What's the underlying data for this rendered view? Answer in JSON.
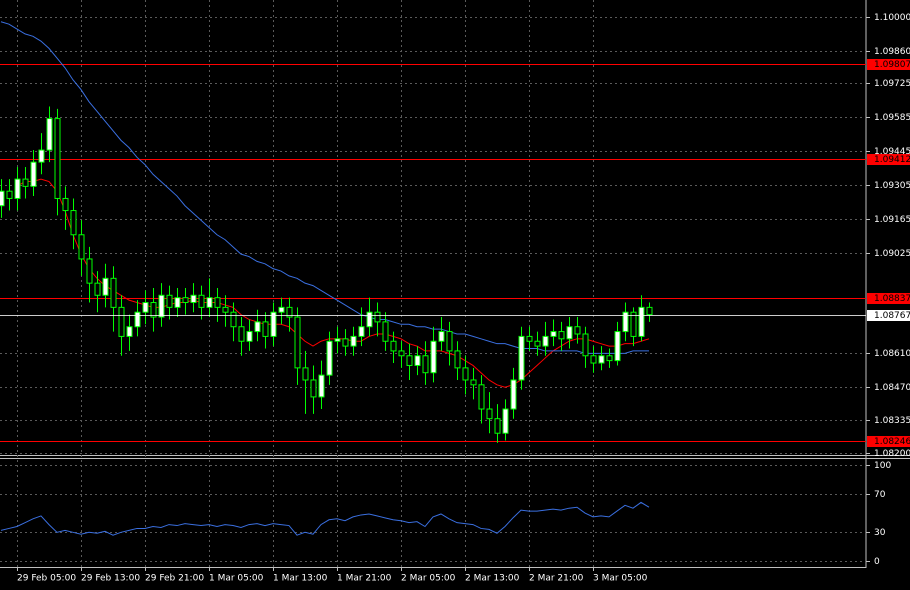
{
  "chart_data": [
    {
      "type": "candlestick",
      "categories": [
        null,
        null,
        "29 Feb 05:00",
        null,
        null,
        null,
        null,
        null,
        null,
        null,
        "29 Feb 13:00",
        null,
        null,
        null,
        null,
        null,
        null,
        null,
        "29 Feb 21:00",
        null,
        null,
        null,
        null,
        null,
        null,
        null,
        "1 Mar 05:00",
        null,
        null,
        null,
        null,
        null,
        null,
        null,
        "1 Mar 13:00",
        null,
        null,
        null,
        null,
        null,
        null,
        null,
        "1 Mar 21:00",
        null,
        null,
        null,
        null,
        null,
        null,
        null,
        "2 Mar 05:00",
        null,
        null,
        null,
        null,
        null,
        null,
        null,
        "2 Mar 13:00",
        null,
        null,
        null,
        null,
        null,
        null,
        null,
        "2 Mar 21:00",
        null,
        null,
        null,
        null,
        null,
        null,
        null,
        "3 Mar 05:00",
        null,
        null,
        null,
        null,
        null,
        null,
        null
      ],
      "open": [
        1.0922,
        1.0928,
        1.0925,
        1.0933,
        1.093,
        1.094,
        1.0945,
        1.0958,
        1.0925,
        1.092,
        1.091,
        1.09,
        1.089,
        1.0885,
        1.0892,
        1.088,
        1.0868,
        1.0872,
        1.0878,
        1.0882,
        1.0876,
        1.0885,
        1.088,
        1.0884,
        1.0882,
        1.0885,
        1.088,
        1.0884,
        1.088,
        1.0878,
        1.0872,
        1.0866,
        1.087,
        1.0874,
        1.0868,
        1.0878,
        1.088,
        1.0876,
        1.0855,
        1.085,
        1.0843,
        1.0852,
        1.0866,
        1.0867,
        1.0864,
        1.0868,
        1.0872,
        1.0878,
        1.0874,
        1.0866,
        1.0862,
        1.086,
        1.0856,
        1.086,
        1.0853,
        1.0866,
        1.087,
        1.0862,
        1.0855,
        1.085,
        1.0848,
        1.0838,
        1.0834,
        1.0828,
        1.0838,
        1.085,
        1.0868,
        1.0866,
        1.0864,
        1.0868,
        1.087,
        1.0867,
        1.0872,
        1.0869,
        1.086,
        1.0857,
        1.086,
        1.0858,
        1.087,
        1.0878,
        1.0868,
        1.088
      ],
      "high": [
        1.0933,
        1.0933,
        1.0938,
        1.0938,
        1.0945,
        1.0952,
        1.0963,
        1.0962,
        1.093,
        1.0925,
        1.0916,
        1.0905,
        1.0895,
        1.0898,
        1.0897,
        1.0885,
        1.0877,
        1.0883,
        1.0887,
        1.0888,
        1.089,
        1.0889,
        1.0888,
        1.0888,
        1.089,
        1.0889,
        1.0892,
        1.0888,
        1.0885,
        1.0882,
        1.0876,
        1.0875,
        1.0879,
        1.0878,
        1.0882,
        1.0884,
        1.0884,
        1.088,
        1.0862,
        1.0856,
        1.0858,
        1.087,
        1.0872,
        1.0871,
        1.0872,
        1.088,
        1.0884,
        1.0882,
        1.0878,
        1.087,
        1.0866,
        1.0865,
        1.0864,
        1.0866,
        1.0872,
        1.0876,
        1.0874,
        1.0866,
        1.086,
        1.0855,
        1.0852,
        1.0845,
        1.084,
        1.0842,
        1.0855,
        1.0872,
        1.0872,
        1.087,
        1.0874,
        1.0875,
        1.0874,
        1.0876,
        1.0876,
        1.0872,
        1.0864,
        1.0864,
        1.0863,
        1.0874,
        1.0882,
        1.088,
        1.0885,
        1.0882
      ],
      "low": [
        1.0917,
        1.092,
        1.092,
        1.0925,
        1.0926,
        1.0935,
        1.094,
        1.0918,
        1.0912,
        1.0904,
        1.0893,
        1.0882,
        1.0878,
        1.088,
        1.087,
        1.086,
        1.0862,
        1.0868,
        1.0873,
        1.087,
        1.0872,
        1.0875,
        1.0876,
        1.0877,
        1.0878,
        1.0875,
        1.0876,
        1.0874,
        1.0872,
        1.0866,
        1.086,
        1.0862,
        1.0866,
        1.0863,
        1.0864,
        1.0873,
        1.087,
        1.0848,
        1.0836,
        1.0836,
        1.0838,
        1.0848,
        1.0861,
        1.086,
        1.086,
        1.0864,
        1.0868,
        1.0868,
        1.0862,
        1.0857,
        1.0855,
        1.085,
        1.0852,
        1.0848,
        1.0849,
        1.0862,
        1.0856,
        1.085,
        1.0844,
        1.0842,
        1.0832,
        1.0828,
        1.0824,
        1.0825,
        1.0834,
        1.0846,
        1.0862,
        1.086,
        1.086,
        1.0864,
        1.0862,
        1.0863,
        1.0865,
        1.0855,
        1.0853,
        1.0854,
        1.0855,
        1.0856,
        1.0866,
        1.0864,
        1.0866,
        1.0874
      ],
      "close": [
        1.0928,
        1.0925,
        1.0933,
        1.093,
        1.094,
        1.0945,
        1.0958,
        1.0925,
        1.092,
        1.091,
        1.09,
        1.089,
        1.0885,
        1.0892,
        1.088,
        1.0868,
        1.0872,
        1.0878,
        1.0882,
        1.0876,
        1.0885,
        1.088,
        1.0884,
        1.0882,
        1.0885,
        1.088,
        1.0884,
        1.088,
        1.0878,
        1.0872,
        1.0866,
        1.087,
        1.0874,
        1.0868,
        1.0878,
        1.088,
        1.0876,
        1.0855,
        1.085,
        1.0843,
        1.0852,
        1.0866,
        1.0867,
        1.0864,
        1.0868,
        1.0872,
        1.0878,
        1.0874,
        1.0866,
        1.0862,
        1.086,
        1.0856,
        1.086,
        1.0853,
        1.0866,
        1.087,
        1.0862,
        1.0855,
        1.085,
        1.0848,
        1.0838,
        1.0834,
        1.0828,
        1.0838,
        1.085,
        1.0868,
        1.0866,
        1.0864,
        1.0868,
        1.087,
        1.0867,
        1.0872,
        1.0869,
        1.086,
        1.0857,
        1.086,
        1.0858,
        1.087,
        1.0878,
        1.0868,
        1.088,
        1.0877
      ],
      "up_color": "#ffffff",
      "down_color": "#000000",
      "wick_color": "#00ff00",
      "lines": [
        {
          "color": "#ff0000",
          "values": [
            null,
            null,
            1.093,
            1.0932,
            1.0932,
            1.0933,
            1.0932,
            1.0928,
            1.092,
            1.091,
            1.0902,
            1.0896,
            1.0892,
            1.0889,
            1.0887,
            1.0885,
            1.0883,
            1.0882,
            1.0881,
            1.088,
            1.088,
            1.0881,
            1.0882,
            1.0882,
            1.0883,
            1.0882,
            1.0882,
            1.0882,
            1.0881,
            1.088,
            1.0877,
            1.0875,
            1.0874,
            1.0873,
            1.0873,
            1.0873,
            1.0872,
            1.0869,
            1.0866,
            1.0864,
            1.0866,
            1.0867,
            1.0867,
            1.0867,
            1.0866,
            1.0866,
            1.0868,
            1.0869,
            1.0869,
            1.0868,
            1.0867,
            1.0865,
            1.0864,
            1.0862,
            1.0862,
            1.0862,
            1.0861,
            1.086,
            1.0858,
            1.0856,
            1.0853,
            1.085,
            1.0848,
            1.0847,
            1.0848,
            1.085,
            1.0853,
            1.0856,
            1.0859,
            1.0862,
            1.0864,
            1.0866,
            1.0867,
            1.0867,
            1.0866,
            1.0865,
            1.0864,
            1.0864,
            1.0865,
            1.0865,
            1.0866,
            1.0867
          ]
        },
        {
          "color": "#3a6fe0",
          "values": [
            1.0998,
            1.0997,
            1.0995,
            1.0993,
            1.0992,
            1.099,
            1.0987,
            1.0983,
            1.0979,
            1.0974,
            1.097,
            1.0965,
            1.0961,
            1.0957,
            1.0953,
            1.0949,
            1.0946,
            1.0942,
            1.0939,
            1.0935,
            1.0932,
            1.0929,
            1.0926,
            1.0922,
            1.0919,
            1.0916,
            1.0913,
            1.091,
            1.0908,
            1.0905,
            1.0902,
            1.0901,
            1.0899,
            1.0898,
            1.0896,
            1.0895,
            1.0893,
            1.0892,
            1.089,
            1.0889,
            1.0887,
            1.0885,
            1.0883,
            1.0881,
            1.0879,
            1.0877,
            1.0876,
            1.0875,
            1.0875,
            1.0874,
            1.0873,
            1.0873,
            1.0872,
            1.0872,
            1.0871,
            1.0871,
            1.087,
            1.0869,
            1.0869,
            1.0868,
            1.0867,
            1.0866,
            1.0865,
            1.0865,
            1.0864,
            1.0863,
            1.0863,
            1.0863,
            1.0862,
            1.0862,
            1.0862,
            1.0862,
            1.0862,
            1.0861,
            1.0861,
            1.0861,
            1.0861,
            1.0861,
            1.0861,
            1.0862,
            1.0862,
            1.0862
          ]
        }
      ],
      "levels": [
        {
          "value": 1.09807,
          "color": "#ff0000"
        },
        {
          "value": 1.09412,
          "color": "#ff0000"
        },
        {
          "value": 1.08837,
          "color": "#ff0000"
        },
        {
          "value": 1.08246,
          "color": "#ff0000"
        }
      ],
      "current": {
        "value": 1.08767,
        "color": "#ffffff"
      },
      "ylim": [
        1.0819,
        1.1007
      ],
      "yticks": [
        {
          "value": 1.1,
          "label": "1.10000"
        },
        {
          "value": 1.0986,
          "label": "1.09860"
        },
        {
          "value": 1.09725,
          "label": "1.09725"
        },
        {
          "value": 1.09585,
          "label": "1.09585"
        },
        {
          "value": 1.09445,
          "label": "1.09445"
        },
        {
          "value": 1.09305,
          "label": "1.09305"
        },
        {
          "value": 1.09165,
          "label": "1.09165"
        },
        {
          "value": 1.09025,
          "label": "1.09025"
        },
        {
          "value": 1.0861,
          "label": "1.08610"
        },
        {
          "value": 1.0847,
          "label": "1.08470"
        },
        {
          "value": 1.08335,
          "label": "1.08335"
        },
        {
          "value": 1.082,
          "label": "1.08200"
        }
      ],
      "grid": true
    },
    {
      "type": "line",
      "color": "#3a6fe0",
      "values": [
        32,
        34,
        36,
        40,
        44,
        47,
        38,
        30,
        32,
        30,
        28,
        30,
        29,
        31,
        27,
        30,
        32,
        34,
        34,
        36,
        35,
        38,
        37,
        39,
        38,
        37,
        38,
        36,
        38,
        37,
        35,
        38,
        39,
        37,
        39,
        38,
        37,
        27,
        30,
        28,
        38,
        43,
        44,
        42,
        46,
        48,
        49,
        47,
        45,
        43,
        42,
        40,
        41,
        36,
        46,
        49,
        44,
        40,
        39,
        38,
        34,
        33,
        29,
        36,
        45,
        53,
        52,
        52,
        53,
        54,
        53,
        55,
        56,
        50,
        46,
        47,
        46,
        52,
        58,
        55,
        61,
        56
      ],
      "ylim": [
        -6,
        105
      ],
      "yticks": [
        100,
        70,
        30,
        0
      ],
      "grid": true
    }
  ]
}
